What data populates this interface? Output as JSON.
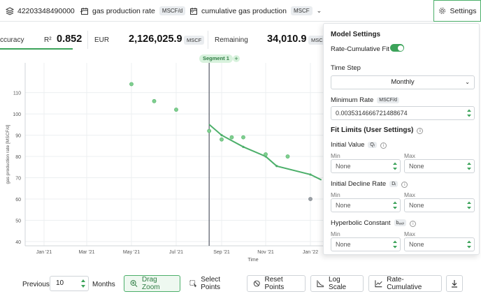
{
  "topbar": {
    "well_id": "42203348490000",
    "rate_label": "gas production rate",
    "rate_unit": "MSCF/d",
    "cumulative_label": "cumulative gas production",
    "cumulative_unit": "MSCF",
    "settings_label": "Settings"
  },
  "metrics": {
    "accuracy_label": "ccuracy",
    "r2_label": "R²",
    "r2_value": "0.852",
    "eur_label": "EUR",
    "eur_value": "2,126,025.9",
    "eur_unit": "MSCF",
    "remaining_label": "Remaining",
    "remaining_value": "34,010.9",
    "remaining_unit": "MSCF"
  },
  "chart": {
    "segment_label": "Segment 1",
    "segment_add": "+",
    "accent_color": "#4caf6a",
    "chart_data": {
      "type": "scatter",
      "xlabel": "Time",
      "ylabel": "gas production rate [MSCF/d]",
      "ylim": [
        38,
        124
      ],
      "x_ticks": [
        "Jan '21",
        "Mar '21",
        "May '21",
        "Jul '21",
        "Sep '21",
        "Nov '21",
        "Jan '22"
      ],
      "y_ticks": [
        40,
        50,
        60,
        70,
        80,
        90,
        100,
        110
      ],
      "grid": true,
      "points": [
        {
          "x": "2021-05-01",
          "y": 114
        },
        {
          "x": "2021-06-01",
          "y": 106
        },
        {
          "x": "2021-07-01",
          "y": 102
        },
        {
          "x": "2021-08-15",
          "y": 92
        },
        {
          "x": "2021-09-01",
          "y": 88
        },
        {
          "x": "2021-09-15",
          "y": 89
        },
        {
          "x": "2021-10-01",
          "y": 89
        },
        {
          "x": "2021-11-01",
          "y": 81
        },
        {
          "x": "2021-12-01",
          "y": 80
        },
        {
          "x": "2022-01-01",
          "y": 60
        }
      ],
      "fit_line": [
        {
          "x": "2021-08-15",
          "y": 95
        },
        {
          "x": "2021-09-01",
          "y": 90
        },
        {
          "x": "2021-10-01",
          "y": 84.5
        },
        {
          "x": "2021-11-01",
          "y": 80
        },
        {
          "x": "2021-11-16",
          "y": 75.5
        },
        {
          "x": "2022-01-01",
          "y": 71.5
        },
        {
          "x": "2022-01-16",
          "y": 69
        }
      ],
      "segment_start": "2021-08-15"
    }
  },
  "bottombar": {
    "previous_label": "Previous",
    "previous_value": "10",
    "months_label": "Months",
    "drag_zoom": "Drag Zoom",
    "select_points": "Select Points",
    "reset_points": "Reset Points",
    "log_scale": "Log Scale",
    "rate_cumulative": "Rate-Cumulative"
  },
  "settings": {
    "title": "Model Settings",
    "rate_cumulative_fit": "Rate-Cumulative Fit",
    "rate_cumulative_fit_on": true,
    "time_step_label": "Time Step",
    "time_step_value": "Monthly",
    "minimum_rate_label": "Minimum Rate",
    "minimum_rate_unit": "MSCF/d",
    "minimum_rate_value": "0.0035314666721488674",
    "fit_limits_label": "Fit Limits (User Settings)",
    "initial_value_label": "Initial Value",
    "initial_value_chip": "Qᵢ",
    "initial_decline_label": "Initial Decline Rate",
    "initial_decline_chip": "Dᵢ",
    "hyperbolic_label": "Hyperbolic Constant",
    "hyperbolic_chip": "bₑₓₚ",
    "min_label": "Min",
    "max_label": "Max",
    "none_value": "None"
  }
}
